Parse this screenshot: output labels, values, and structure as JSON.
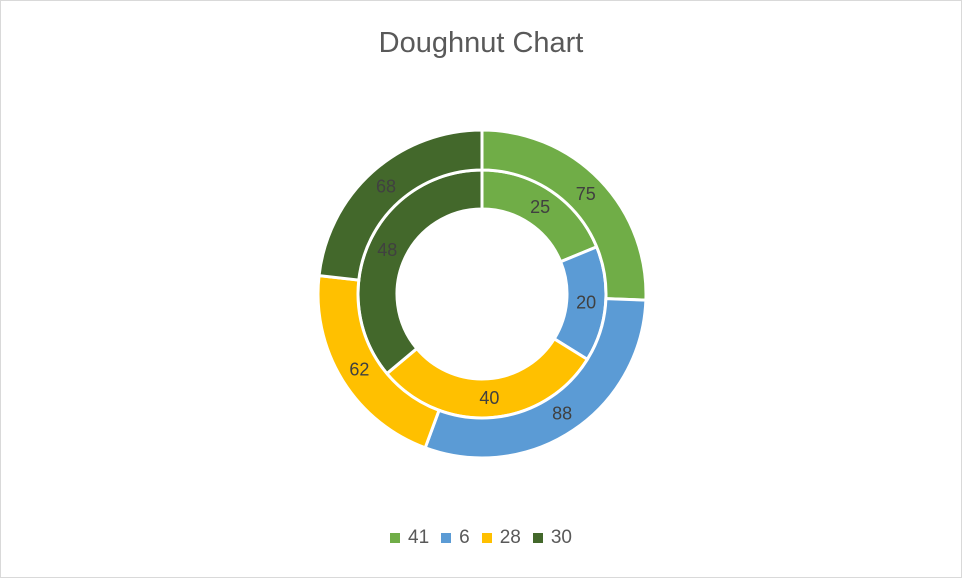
{
  "chart_data": {
    "type": "doughnut",
    "title": "Doughnut Chart",
    "categories": [
      "41",
      "6",
      "28",
      "30"
    ],
    "colors": [
      "#70ad47",
      "#5b9bd5",
      "#ffc000",
      "#43682b"
    ],
    "series": [
      {
        "ring": "inner",
        "values": [
          25,
          20,
          40,
          48
        ]
      },
      {
        "ring": "outer",
        "values": [
          75,
          88,
          62,
          68
        ]
      }
    ],
    "data_labels": true,
    "legend_position": "bottom"
  }
}
